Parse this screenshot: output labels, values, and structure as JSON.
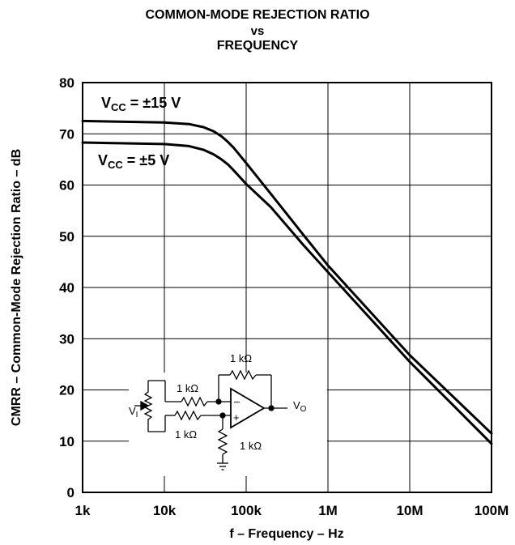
{
  "chart_data": {
    "type": "line",
    "title": [
      "COMMON-MODE REJECTION RATIO",
      "vs",
      "FREQUENCY"
    ],
    "xlabel": "f – Frequency – Hz",
    "ylabel": "CMRR – Common-Mode Rejection Ratio – dB",
    "x_scale": "log",
    "xlim": [
      1000,
      100000000
    ],
    "ylim": [
      0,
      80
    ],
    "x_ticks": [
      1000,
      10000,
      100000,
      1000000,
      10000000,
      100000000
    ],
    "x_tick_labels": [
      "1k",
      "10k",
      "100k",
      "1M",
      "10M",
      "100M"
    ],
    "y_ticks": [
      0,
      10,
      20,
      30,
      40,
      50,
      60,
      70,
      80
    ],
    "y_tick_labels": [
      "0",
      "10",
      "20",
      "30",
      "40",
      "50",
      "60",
      "70",
      "80"
    ],
    "grid": true,
    "series": [
      {
        "name": "VCC = ±15 V",
        "label_main": "V",
        "label_sub": "CC",
        "label_rest": " = ±15 V",
        "x": [
          1000,
          10000,
          20000,
          30000,
          40000,
          50000,
          60000,
          70000,
          80000,
          100000,
          200000,
          500000,
          1000000,
          10000000,
          100000000
        ],
        "y": [
          72.5,
          72.2,
          71.9,
          71.3,
          70.5,
          69.5,
          68.4,
          67.3,
          66.2,
          64.3,
          58.3,
          50.3,
          44.3,
          26.8,
          11.5
        ]
      },
      {
        "name": "VCC = ±5 V",
        "label_main": "V",
        "label_sub": "CC",
        "label_rest": " = ±5 V",
        "x": [
          1000,
          10000,
          20000,
          30000,
          40000,
          50000,
          60000,
          70000,
          80000,
          100000,
          200000,
          500000,
          1000000,
          10000000,
          100000000
        ],
        "y": [
          68.3,
          68.0,
          67.6,
          66.9,
          66.0,
          65.0,
          64.0,
          62.9,
          61.9,
          60.2,
          55.7,
          48.3,
          43.0,
          25.5,
          9.5
        ]
      }
    ]
  },
  "schematic": {
    "r_feedback": "1 kΩ",
    "r_inverting": "1 kΩ",
    "r_noninverting": "1 kΩ",
    "r_ground": "1 kΩ",
    "input_label_main": "V",
    "input_label_sub": "I",
    "output_label_main": "V",
    "output_label_sub": "O",
    "minus_sign": "–",
    "plus_sign": "+"
  }
}
